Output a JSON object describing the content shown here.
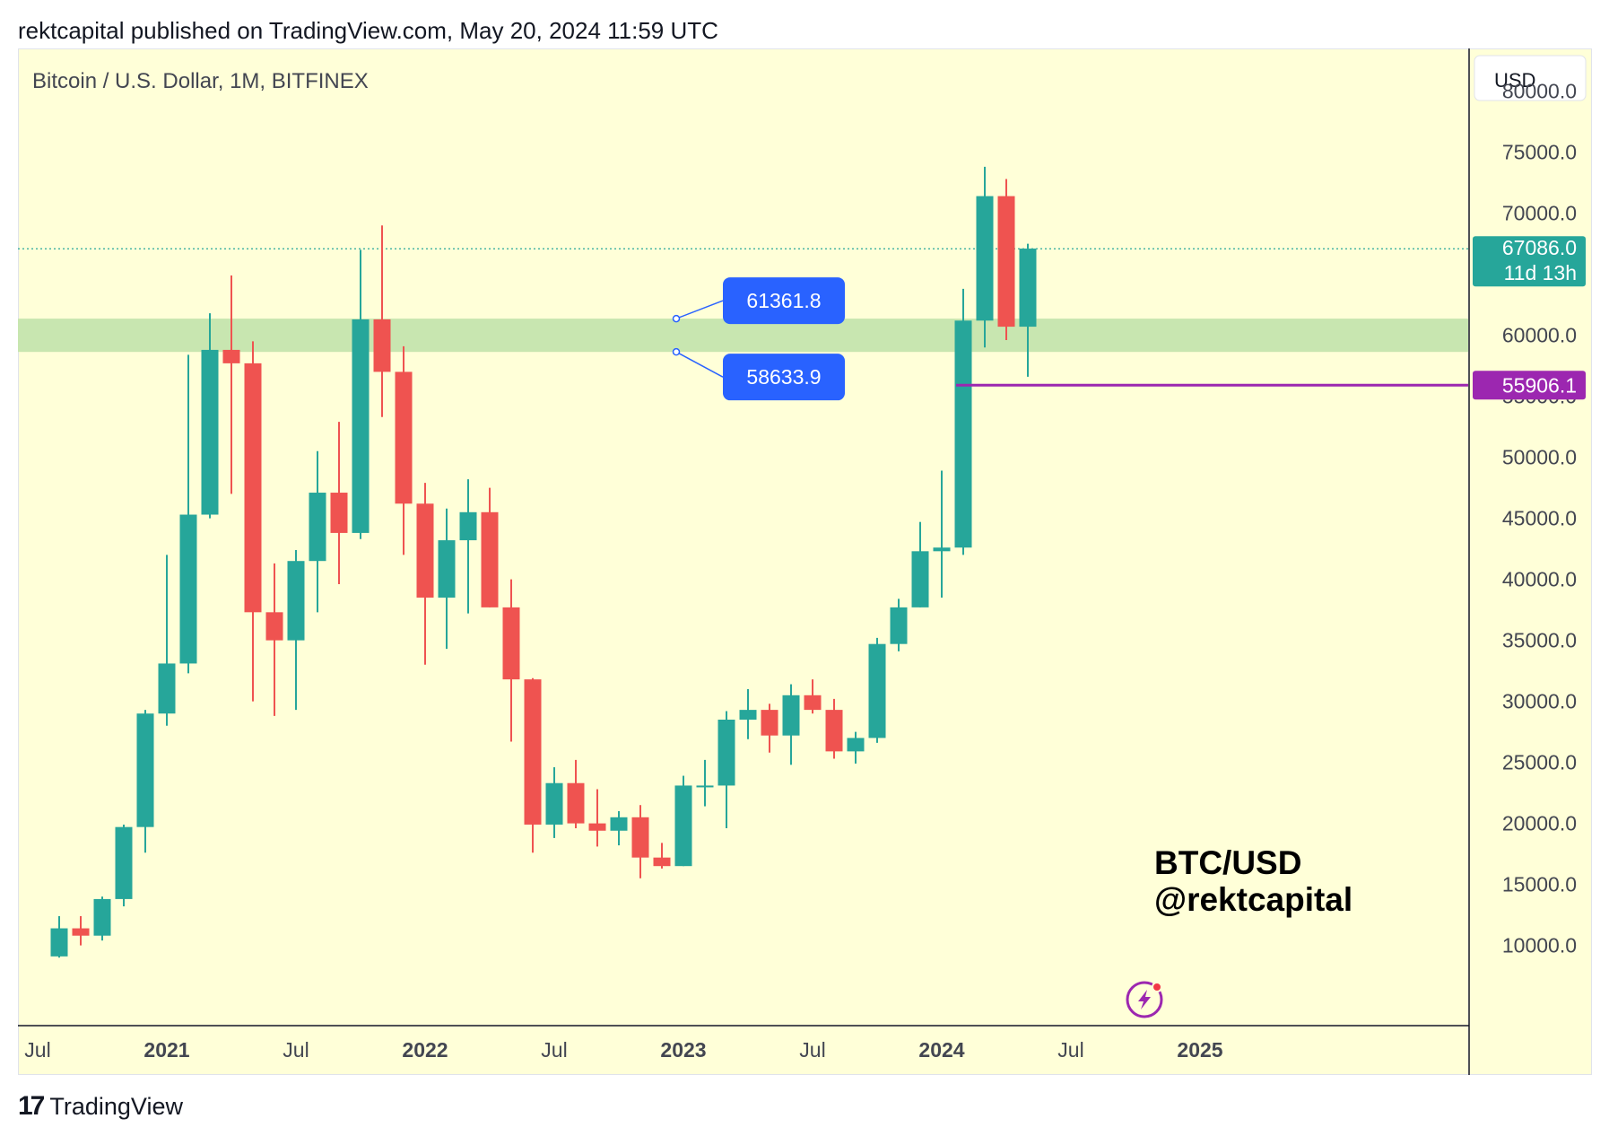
{
  "header": {
    "published": "rektcapital published on TradingView.com, May 20, 2024 11:59 UTC"
  },
  "footer": {
    "logo_mark": "17",
    "logo_text": "TradingView"
  },
  "chart_data": {
    "type": "candlestick",
    "title": "Bitcoin / U.S. Dollar, 1M, BITFINEX",
    "currency_button": "USD",
    "watermark": [
      "BTC/USD",
      "@rektcapital"
    ],
    "y_ticks": [
      80000,
      75000,
      70000,
      65000,
      60000,
      55000,
      50000,
      45000,
      40000,
      35000,
      30000,
      25000,
      20000,
      15000,
      10000
    ],
    "y_tick_labels": [
      "80000.0",
      "75000.0",
      "70000.0",
      "65000.0",
      "60000.0",
      "55000.0",
      "50000.0",
      "45000.0",
      "40000.0",
      "35000.0",
      "30000.0",
      "25000.0",
      "20000.0",
      "15000.0",
      "10000.0"
    ],
    "ylim": [
      3500,
      83500
    ],
    "x_labels": [
      {
        "label": "Jul",
        "index": -6,
        "bold": false
      },
      {
        "label": "2021",
        "index": 0,
        "bold": true
      },
      {
        "label": "Jul",
        "index": 6,
        "bold": false
      },
      {
        "label": "2022",
        "index": 12,
        "bold": true
      },
      {
        "label": "Jul",
        "index": 18,
        "bold": false
      },
      {
        "label": "2023",
        "index": 24,
        "bold": true
      },
      {
        "label": "Jul",
        "index": 30,
        "bold": false
      },
      {
        "label": "2024",
        "index": 36,
        "bold": true
      },
      {
        "label": "Jul",
        "index": 42,
        "bold": false
      },
      {
        "label": "2025",
        "index": 48,
        "bold": true
      }
    ],
    "candles": [
      {
        "date": "2020-08",
        "o": 9100,
        "h": 12400,
        "l": 9000,
        "c": 11400
      },
      {
        "date": "2020-09",
        "o": 11400,
        "h": 12400,
        "l": 10000,
        "c": 10800
      },
      {
        "date": "2020-10",
        "o": 10800,
        "h": 14000,
        "l": 10400,
        "c": 13800
      },
      {
        "date": "2020-11",
        "o": 13800,
        "h": 19900,
        "l": 13200,
        "c": 19700
      },
      {
        "date": "2020-12",
        "o": 19700,
        "h": 29300,
        "l": 17600,
        "c": 29000
      },
      {
        "date": "2021-01",
        "o": 29000,
        "h": 42000,
        "l": 28000,
        "c": 33100
      },
      {
        "date": "2021-02",
        "o": 33100,
        "h": 58400,
        "l": 32300,
        "c": 45300
      },
      {
        "date": "2021-03",
        "o": 45300,
        "h": 61800,
        "l": 45000,
        "c": 58800
      },
      {
        "date": "2021-04",
        "o": 58800,
        "h": 64900,
        "l": 47000,
        "c": 57700
      },
      {
        "date": "2021-05",
        "o": 57700,
        "h": 59500,
        "l": 30000,
        "c": 37300
      },
      {
        "date": "2021-06",
        "o": 37300,
        "h": 41300,
        "l": 28800,
        "c": 35000
      },
      {
        "date": "2021-07",
        "o": 35000,
        "h": 42400,
        "l": 29300,
        "c": 41500
      },
      {
        "date": "2021-08",
        "o": 41500,
        "h": 50500,
        "l": 37300,
        "c": 47100
      },
      {
        "date": "2021-09",
        "o": 47100,
        "h": 52900,
        "l": 39600,
        "c": 43800
      },
      {
        "date": "2021-10",
        "o": 43800,
        "h": 67000,
        "l": 43300,
        "c": 61300
      },
      {
        "date": "2021-11",
        "o": 61300,
        "h": 69000,
        "l": 53300,
        "c": 57000
      },
      {
        "date": "2021-12",
        "o": 57000,
        "h": 59100,
        "l": 42000,
        "c": 46200
      },
      {
        "date": "2022-01",
        "o": 46200,
        "h": 47900,
        "l": 33000,
        "c": 38500
      },
      {
        "date": "2022-02",
        "o": 38500,
        "h": 45800,
        "l": 34300,
        "c": 43200
      },
      {
        "date": "2022-03",
        "o": 43200,
        "h": 48200,
        "l": 37200,
        "c": 45500
      },
      {
        "date": "2022-04",
        "o": 45500,
        "h": 47500,
        "l": 37700,
        "c": 37700
      },
      {
        "date": "2022-05",
        "o": 37700,
        "h": 40000,
        "l": 26700,
        "c": 31800
      },
      {
        "date": "2022-06",
        "o": 31800,
        "h": 31900,
        "l": 17600,
        "c": 19900
      },
      {
        "date": "2022-07",
        "o": 19900,
        "h": 24600,
        "l": 18800,
        "c": 23300
      },
      {
        "date": "2022-08",
        "o": 23300,
        "h": 25200,
        "l": 19600,
        "c": 20000
      },
      {
        "date": "2022-09",
        "o": 20000,
        "h": 22800,
        "l": 18100,
        "c": 19400
      },
      {
        "date": "2022-10",
        "o": 19400,
        "h": 21000,
        "l": 18200,
        "c": 20500
      },
      {
        "date": "2022-11",
        "o": 20500,
        "h": 21500,
        "l": 15500,
        "c": 17200
      },
      {
        "date": "2022-12",
        "o": 17200,
        "h": 18400,
        "l": 16300,
        "c": 16500
      },
      {
        "date": "2023-01",
        "o": 16500,
        "h": 23900,
        "l": 16500,
        "c": 23100
      },
      {
        "date": "2023-02",
        "o": 23100,
        "h": 25200,
        "l": 21400,
        "c": 23100
      },
      {
        "date": "2023-03",
        "o": 23100,
        "h": 29200,
        "l": 19600,
        "c": 28500
      },
      {
        "date": "2023-04",
        "o": 28500,
        "h": 31000,
        "l": 26900,
        "c": 29300
      },
      {
        "date": "2023-05",
        "o": 29300,
        "h": 29800,
        "l": 25800,
        "c": 27200
      },
      {
        "date": "2023-06",
        "o": 27200,
        "h": 31400,
        "l": 24800,
        "c": 30500
      },
      {
        "date": "2023-07",
        "o": 30500,
        "h": 31800,
        "l": 29000,
        "c": 29300
      },
      {
        "date": "2023-08",
        "o": 29300,
        "h": 30200,
        "l": 25300,
        "c": 25900
      },
      {
        "date": "2023-09",
        "o": 25900,
        "h": 27500,
        "l": 24900,
        "c": 27000
      },
      {
        "date": "2023-10",
        "o": 27000,
        "h": 35200,
        "l": 26600,
        "c": 34700
      },
      {
        "date": "2023-11",
        "o": 34700,
        "h": 38400,
        "l": 34100,
        "c": 37700
      },
      {
        "date": "2023-12",
        "o": 37700,
        "h": 44700,
        "l": 37700,
        "c": 42300
      },
      {
        "date": "2024-01",
        "o": 42300,
        "h": 48900,
        "l": 38500,
        "c": 42600
      },
      {
        "date": "2024-02",
        "o": 42600,
        "h": 63800,
        "l": 42000,
        "c": 61200
      },
      {
        "date": "2024-03",
        "o": 61200,
        "h": 73800,
        "l": 59000,
        "c": 71400
      },
      {
        "date": "2024-04",
        "o": 71400,
        "h": 72800,
        "l": 59600,
        "c": 60700
      },
      {
        "date": "2024-05",
        "o": 60700,
        "h": 67500,
        "l": 56600,
        "c": 67100
      }
    ],
    "support_zone": {
      "low": 58633.9,
      "high": 61361.8,
      "color": "#c8e6b0"
    },
    "price_labels": {
      "high": "61361.8",
      "low": "58633.9",
      "color": "#2962ff"
    },
    "last_price": {
      "value": 67086.0,
      "label": "67086.0",
      "countdown": "11d 13h",
      "color": "#26a69a"
    },
    "horizontal_line": {
      "value": 55906.1,
      "label": "55906.1",
      "color": "#9c27b0"
    },
    "colors": {
      "up": "#26a69a",
      "down": "#ef5350",
      "background": "#ffffe0",
      "border": "#e0e3eb"
    }
  }
}
